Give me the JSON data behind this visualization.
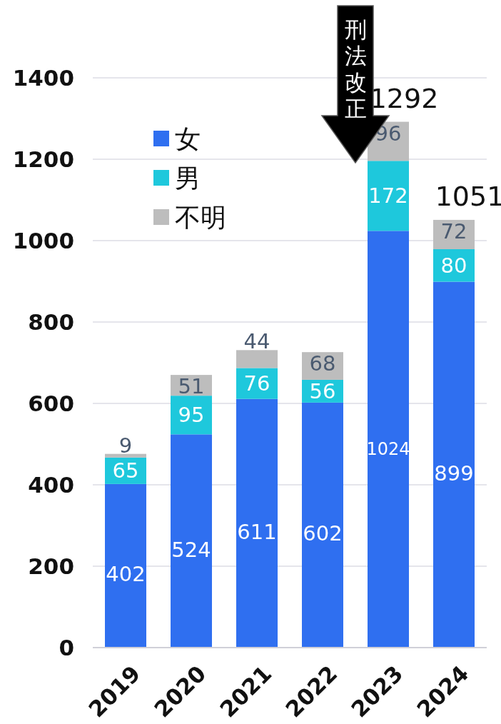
{
  "chart_data": {
    "type": "bar",
    "stacked": true,
    "categories": [
      "2019",
      "2020",
      "2021",
      "2022",
      "2023",
      "2024"
    ],
    "series": [
      {
        "name": "女",
        "color": "#2f6ff0",
        "values": [
          402,
          524,
          611,
          602,
          1024,
          899
        ]
      },
      {
        "name": "男",
        "color": "#1ec8dc",
        "values": [
          65,
          95,
          76,
          56,
          172,
          80
        ]
      },
      {
        "name": "不明",
        "color": "#bdbdbd",
        "values": [
          9,
          51,
          44,
          68,
          96,
          72
        ]
      }
    ],
    "ylim": [
      0,
      1400
    ],
    "yticks": [
      0,
      200,
      400,
      600,
      800,
      1000,
      1200,
      1400
    ],
    "grid": "y",
    "legend": "top left",
    "data_labels": true,
    "totals": [
      null,
      null,
      null,
      null,
      "1292",
      "1051"
    ],
    "annotations": [
      "刑法改正"
    ]
  }
}
